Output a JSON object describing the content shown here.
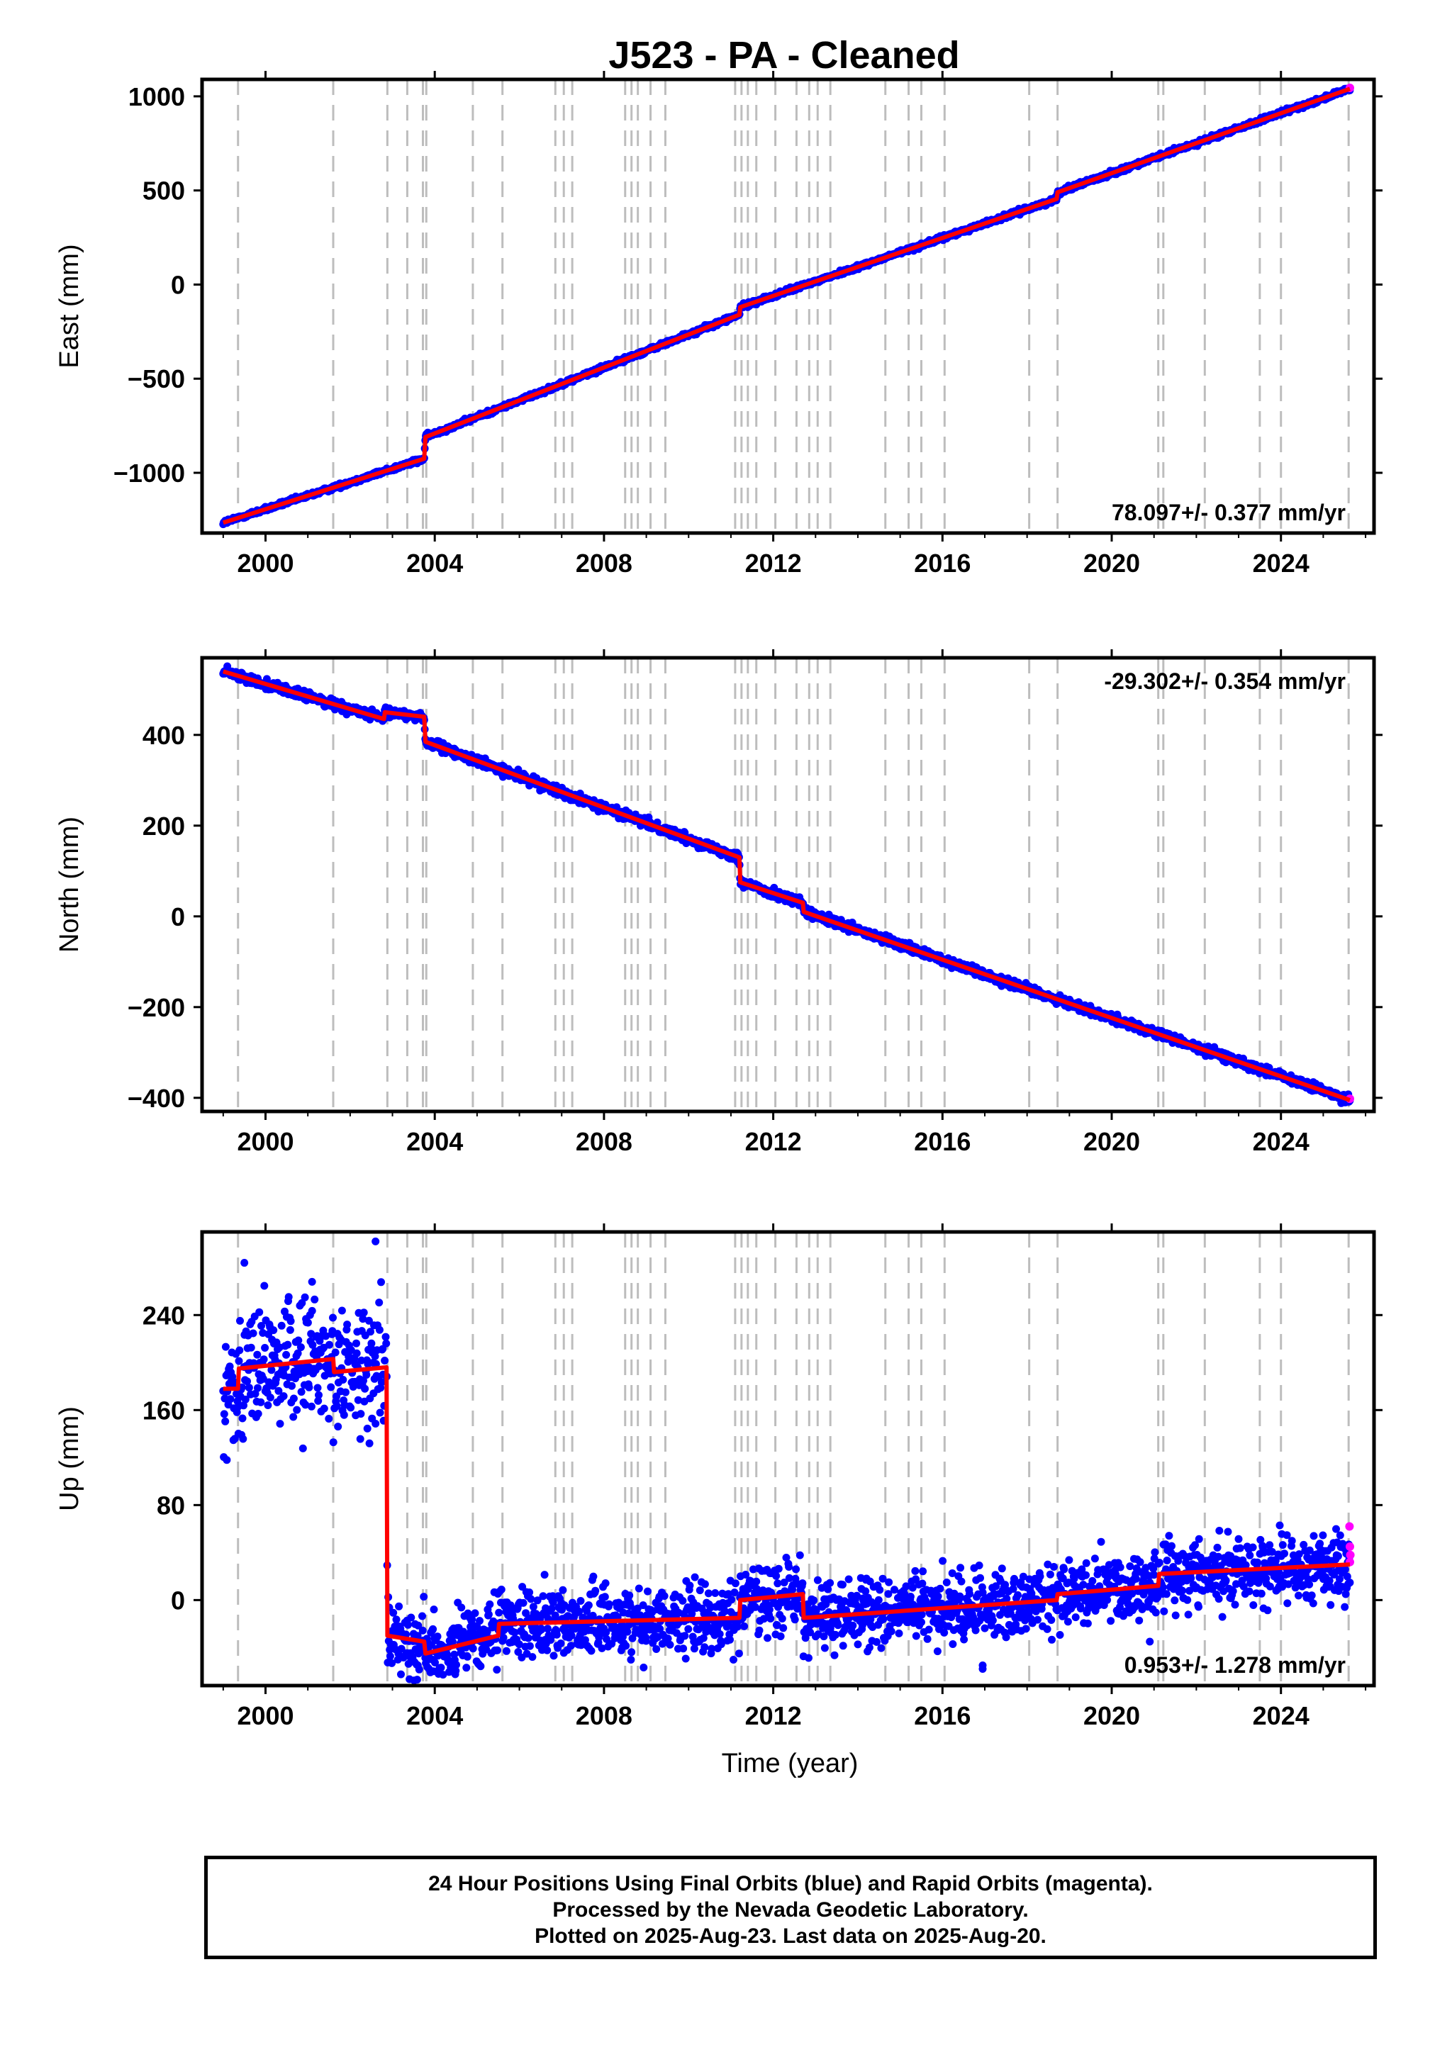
{
  "title": "J523  - PA - Cleaned",
  "xlabel": "Time (year)",
  "caption": [
    "24 Hour Positions Using Final Orbits (blue) and Rapid Orbits (magenta).",
    "Processed by the Nevada Geodetic Laboratory.",
    "Plotted on 2025-Aug-23. Last data on 2025-Aug-20."
  ],
  "colors": {
    "final": "#0000ff",
    "rapid": "#ff00ff",
    "model": "#ff0000",
    "event_line": "#bdbdbd"
  },
  "chart_data": [
    {
      "type": "scatter",
      "ylabel": "East (mm)",
      "rate_label": "78.097+/- 0.377 mm/yr",
      "rate_position": "bottom-right",
      "xlim": [
        1998.5,
        2026.2
      ],
      "ylim": [
        -1320,
        1090
      ],
      "yticks": [
        -1000,
        -500,
        0,
        500,
        1000
      ],
      "ytick_labels": [
        "−1000",
        "−500",
        "0",
        "500",
        "1000"
      ],
      "xticks": [
        2000,
        2004,
        2008,
        2012,
        2016,
        2020,
        2024
      ],
      "rate": 78.097,
      "noise": 6,
      "model": [
        [
          1999.0,
          -1265
        ],
        [
          2003.75,
          -925
        ],
        [
          2003.78,
          -810
        ],
        [
          2011.2,
          -160
        ],
        [
          2011.22,
          -120
        ],
        [
          2018.7,
          455
        ],
        [
          2018.72,
          490
        ],
        [
          2025.63,
          1040
        ]
      ],
      "outliers": [],
      "rapid": [
        [
          2025.63,
          1045
        ]
      ]
    },
    {
      "type": "scatter",
      "ylabel": "North (mm)",
      "rate_label": "-29.302+/- 0.354 mm/yr",
      "rate_position": "top-right",
      "xlim": [
        1998.5,
        2026.2
      ],
      "ylim": [
        -430,
        570
      ],
      "yticks": [
        -400,
        -200,
        0,
        200,
        400
      ],
      "ytick_labels": [
        "−400",
        "−200",
        "0",
        "200",
        "400"
      ],
      "xticks": [
        2000,
        2004,
        2008,
        2012,
        2016,
        2020,
        2024
      ],
      "rate": -29.302,
      "noise": 5,
      "model": [
        [
          1999.0,
          540
        ],
        [
          2002.8,
          435
        ],
        [
          2002.82,
          450
        ],
        [
          2003.75,
          440
        ],
        [
          2003.78,
          385
        ],
        [
          2011.2,
          130
        ],
        [
          2011.22,
          75
        ],
        [
          2012.7,
          30
        ],
        [
          2012.72,
          10
        ],
        [
          2025.63,
          -405
        ]
      ],
      "outliers": [],
      "rapid": [
        [
          2025.63,
          -402
        ]
      ]
    },
    {
      "type": "scatter",
      "ylabel": "Up (mm)",
      "rate_label": "0.953+/- 1.278 mm/yr",
      "rate_position": "bottom-right",
      "xlim": [
        1998.5,
        2026.2
      ],
      "ylim": [
        -72,
        310
      ],
      "yticks": [
        0,
        80,
        160,
        240
      ],
      "ytick_labels": [
        "0",
        "80",
        "160",
        "240"
      ],
      "xticks": [
        2000,
        2004,
        2008,
        2012,
        2016,
        2020,
        2024
      ],
      "rate": 0.953,
      "noise": 14,
      "model": [
        [
          1999.0,
          178
        ],
        [
          1999.35,
          178
        ],
        [
          1999.37,
          195
        ],
        [
          2001.6,
          203
        ],
        [
          2001.62,
          192
        ],
        [
          2002.86,
          196
        ],
        [
          2002.88,
          -30
        ],
        [
          2003.75,
          -35
        ],
        [
          2003.78,
          -45
        ],
        [
          2005.5,
          -30
        ],
        [
          2005.52,
          -20
        ],
        [
          2011.2,
          -15
        ],
        [
          2011.22,
          0
        ],
        [
          2012.7,
          5
        ],
        [
          2012.72,
          -15
        ],
        [
          2018.7,
          0
        ],
        [
          2018.72,
          5
        ],
        [
          2021.1,
          12
        ],
        [
          2021.12,
          22
        ],
        [
          2025.63,
          30
        ]
      ],
      "outliers": [
        [
          2016.95,
          -58
        ],
        [
          2016.95,
          -55
        ],
        [
          2002.6,
          302
        ],
        [
          1999.5,
          284
        ],
        [
          2001.1,
          268
        ],
        [
          2020.9,
          -35
        ],
        [
          2003.6,
          -55
        ]
      ],
      "rapid": [
        [
          2025.62,
          62
        ],
        [
          2025.63,
          45
        ],
        [
          2025.64,
          38
        ],
        [
          2025.63,
          32
        ]
      ]
    }
  ],
  "event_lines": [
    1999.35,
    2001.6,
    2002.88,
    2003.35,
    2003.72,
    2003.8,
    2004.9,
    2005.6,
    2006.85,
    2007.05,
    2007.25,
    2008.5,
    2008.65,
    2008.8,
    2009.1,
    2009.45,
    2011.1,
    2011.25,
    2011.4,
    2011.6,
    2012.05,
    2012.55,
    2012.85,
    2013.05,
    2013.35,
    2014.65,
    2015.2,
    2015.5,
    2016.05,
    2018.05,
    2018.72,
    2021.1,
    2021.22,
    2022.2,
    2023.5,
    2024.0,
    2025.6
  ]
}
